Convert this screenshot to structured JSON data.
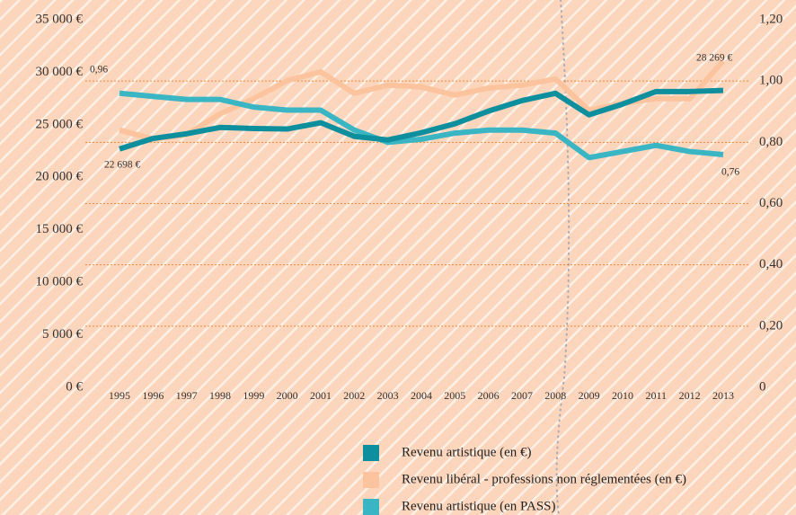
{
  "chart_data": {
    "type": "line",
    "categories": [
      "1995",
      "1996",
      "1997",
      "1998",
      "1999",
      "2000",
      "2001",
      "2002",
      "2003",
      "2004",
      "2005",
      "2006",
      "2007",
      "2008",
      "2009",
      "2010",
      "2011",
      "2012",
      "2013"
    ],
    "series": [
      {
        "name": "Revenu artistique (en €)",
        "color": "#0e8f9e",
        "values": [
          22698,
          23700,
          24150,
          24750,
          24650,
          24600,
          25200,
          23900,
          23560,
          24250,
          25100,
          26300,
          27300,
          28000,
          25950,
          26970,
          28170,
          28170,
          28269
        ],
        "value_labels": [
          "22 698 €",
          null,
          null,
          null,
          null,
          null,
          null,
          null,
          null,
          null,
          null,
          null,
          null,
          null,
          null,
          null,
          null,
          null,
          "28 269 €"
        ]
      },
      {
        "name": "Revenu libéral - professions non réglementées (en €)",
        "color": "#fcc49e",
        "values": [
          24500,
          23650,
          24070,
          26040,
          27490,
          29200,
          30050,
          28000,
          28770,
          28600,
          27830,
          28500,
          28770,
          29370,
          26380,
          27060,
          27490,
          27490,
          31070
        ]
      },
      {
        "name": "Revenu artistique (en PASS)",
        "color": "#3ab5c4",
        "axis": "y2",
        "values": [
          0.96,
          0.95,
          0.94,
          0.94,
          0.915,
          0.905,
          0.905,
          0.84,
          0.8,
          0.81,
          0.83,
          0.84,
          0.84,
          0.83,
          0.75,
          0.77,
          0.79,
          0.77,
          0.76
        ],
        "value_labels": [
          "0,96",
          null,
          null,
          null,
          null,
          null,
          null,
          null,
          null,
          null,
          null,
          null,
          null,
          null,
          null,
          null,
          null,
          null,
          "0,76"
        ]
      }
    ],
    "ylim": [
      0,
      35000
    ],
    "yticks": [
      {
        "value": 0,
        "label": "0  €"
      },
      {
        "value": 5000,
        "label": "5 000 €"
      },
      {
        "value": 10000,
        "label": "10 000 €"
      },
      {
        "value": 15000,
        "label": "15 000 €"
      },
      {
        "value": 20000,
        "label": "20 000 €"
      },
      {
        "value": 25000,
        "label": "25 000 €"
      },
      {
        "value": 30000,
        "label": "30 000 €"
      },
      {
        "value": 35000,
        "label": "35 000 €"
      }
    ],
    "y2lim": [
      0,
      1.2
    ],
    "y2ticks": [
      0,
      {
        "value": 0.2,
        "label": "0,20"
      },
      {
        "value": 0.4,
        "label": "0,40"
      },
      {
        "value": 0.6,
        "label": "0,60"
      },
      {
        "value": 0.8,
        "label": "0,80"
      },
      {
        "value": 1.0,
        "label": "1,00"
      },
      {
        "value": 1.2,
        "label": "1,20"
      }
    ],
    "grid": true,
    "legend": "bottom"
  }
}
